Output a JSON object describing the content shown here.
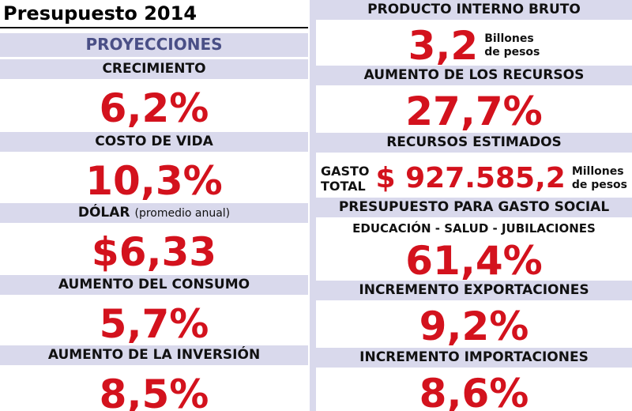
{
  "header": {
    "title": "Presupuesto 2014"
  },
  "left": {
    "heading": "PROYECCIONES",
    "items": [
      {
        "label": "CRECIMIENTO",
        "value": "6,2%"
      },
      {
        "label": "COSTO DE VIDA",
        "value": "10,3%"
      },
      {
        "label": "DÓLAR",
        "note": "(promedio anual)",
        "value": "$6,33"
      },
      {
        "label": "AUMENTO DEL CONSUMO",
        "value": "5,7%"
      },
      {
        "label": "AUMENTO DE LA INVERSIÓN",
        "value": "8,5%"
      }
    ]
  },
  "right": {
    "items": [
      {
        "label": "PRODUCTO INTERNO BRUTO",
        "value": "3,2",
        "unit": [
          "Billones",
          "de pesos"
        ]
      },
      {
        "label": "AUMENTO DE LOS RECURSOS",
        "value": "27,7%"
      },
      {
        "label": "RECURSOS ESTIMADOS",
        "prefix": [
          "GASTO",
          "TOTAL"
        ],
        "value": "$ 927.585,2",
        "unit": [
          "Millones",
          "de pesos"
        ]
      },
      {
        "label": "PRESUPUESTO PARA GASTO SOCIAL",
        "sublabel": "EDUCACIÓN - SALUD - JUBILACIONES",
        "value": "61,4%"
      },
      {
        "label": "INCREMENTO EXPORTACIONES",
        "value": "9,2%"
      },
      {
        "label": "INCREMENTO IMPORTACIONES",
        "value": "8,6%"
      }
    ]
  }
}
